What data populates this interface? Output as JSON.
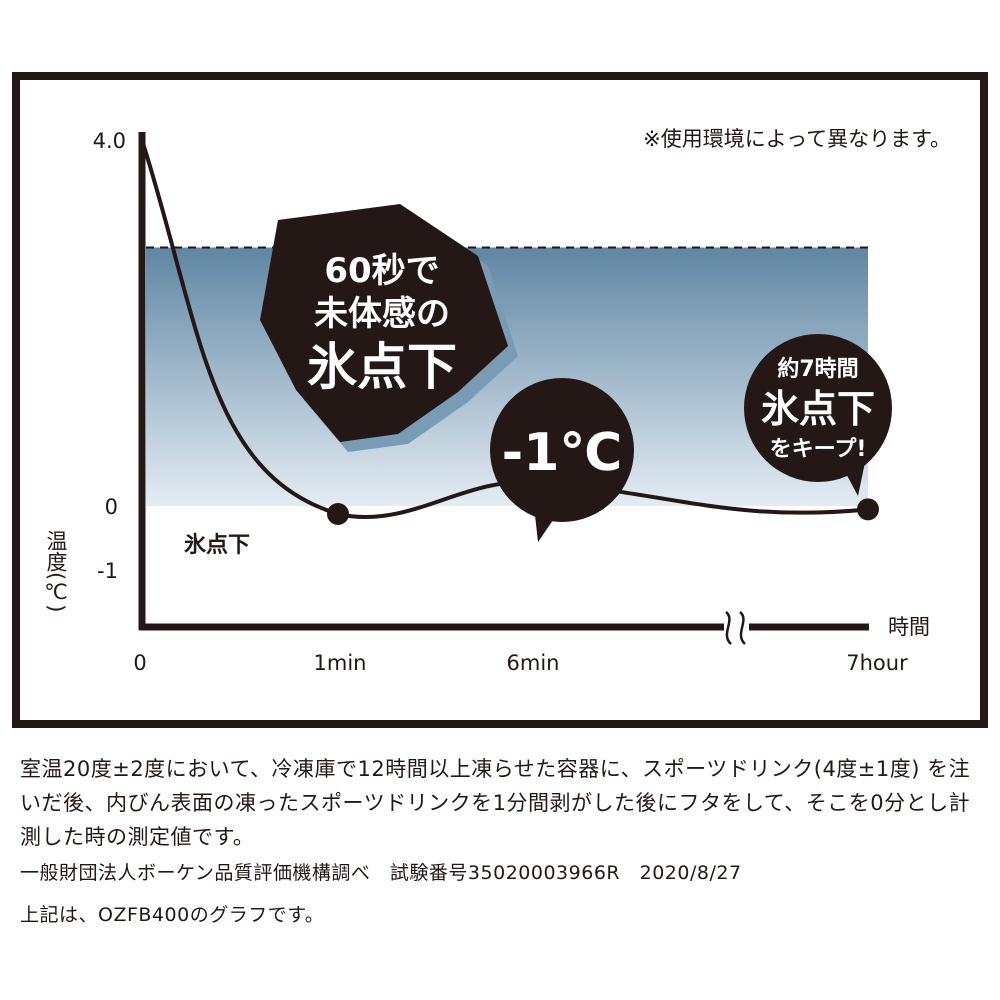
{
  "chart_data": {
    "type": "line",
    "title": "",
    "xlabel": "時間",
    "ylabel": "温度(℃)",
    "x_ticks": [
      "0",
      "1min",
      "6min",
      "7hour"
    ],
    "y_ticks": [
      "4.0",
      "0",
      "-1"
    ],
    "ylim": [
      -1.5,
      4.0
    ],
    "axis_break_on_x": true,
    "series": [
      {
        "color": "#231815",
        "points": [
          {
            "x": "0",
            "y": 4.0
          },
          {
            "x": "1min",
            "y": 0
          },
          {
            "x": "6min",
            "y": -0.55
          },
          {
            "x": "7hour",
            "y": 0.05
          }
        ],
        "markers": [
          "1min",
          "6min",
          "7hour"
        ]
      }
    ],
    "band": {
      "y_from": 0,
      "y_to": 2.85,
      "label": "氷点下",
      "color_top": "#5f86a3",
      "color_bottom": "#e4ecf3"
    },
    "annotations": {
      "note": "※使用環境によって異なります。",
      "burst": [
        "60秒で",
        "未体感の",
        "氷点下"
      ],
      "bubble_min": "-1℃",
      "bubble_keep": [
        "約7時間",
        "氷点下",
        "をキープ!"
      ]
    }
  },
  "footnotes": {
    "main": "室温20度±2度において、冷凍庫で12時間以上凍らせた容器に、スポーツドリンク(4度±1度) を注いだ後、内びん表面の凍ったスポーツドリンクを1分間剥がした後にフタをして、そこを0分とし計測した時の測定値です。",
    "source": "一般財団法人ボーケン品質評価機構調べ　試験番号35020003966R　2020/8/27",
    "product": "上記は、OZFB400のグラフです。"
  }
}
